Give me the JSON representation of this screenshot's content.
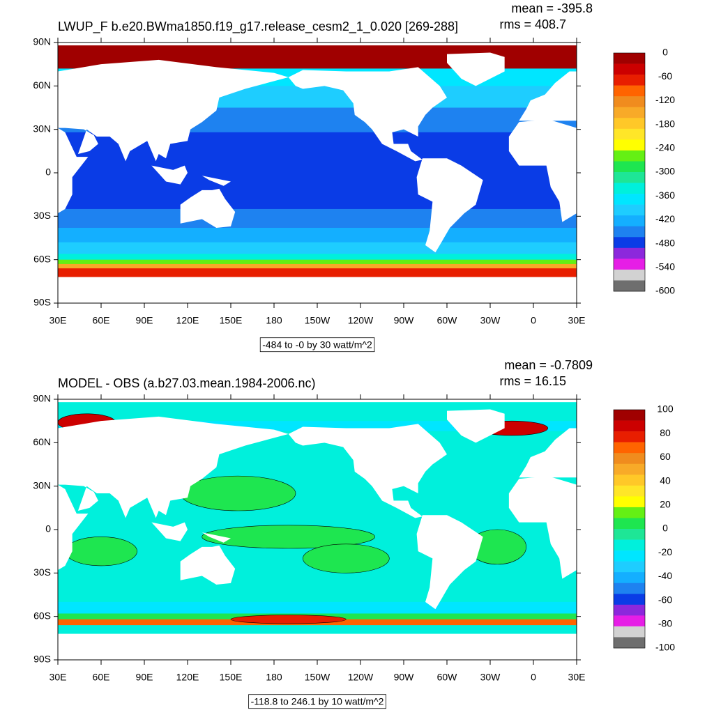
{
  "panels": [
    {
      "title": "LWUP_F b.e20.BWma1850.f19_g17.release_cesm2_1_0.020 [269-288]",
      "mean": "mean = -395.8",
      "rms": "rms = 408.7",
      "info": "-484 to -0 by 30 watt/m^2",
      "lat_ticks": [
        "90N",
        "60N",
        "30N",
        "0",
        "30S",
        "60S",
        "90S"
      ],
      "lon_ticks": [
        "30E",
        "60E",
        "90E",
        "120E",
        "150E",
        "180",
        "150W",
        "120W",
        "90W",
        "60W",
        "30W",
        "0",
        "30E"
      ],
      "colorbar_labels": [
        "0",
        "-60",
        "-120",
        "-180",
        "-240",
        "-300",
        "-360",
        "-420",
        "-480",
        "-540",
        "-600"
      ],
      "colors": [
        "#a00000",
        "#cc0000",
        "#e81e00",
        "#ff6400",
        "#f08c1e",
        "#f8aa28",
        "#ffc828",
        "#ffe628",
        "#ffff00",
        "#64f014",
        "#1ee650",
        "#1ee696",
        "#00f0dc",
        "#00e6ff",
        "#1ecdff",
        "#14afff",
        "#1e82f0",
        "#0a3ce6",
        "#8c28dc",
        "#e61ee6",
        "#d2d2d2",
        "#6e6e6e"
      ]
    },
    {
      "title": "MODEL - OBS (a.b27.03.mean.1984-2006.nc)",
      "mean": "mean = -0.7809",
      "rms": "rms = 16.15",
      "info": "-118.8 to 246.1 by 10 watt/m^2",
      "lat_ticks": [
        "90N",
        "60N",
        "30N",
        "0",
        "30S",
        "60S",
        "90S"
      ],
      "lon_ticks": [
        "30E",
        "60E",
        "90E",
        "120E",
        "150E",
        "180",
        "150W",
        "120W",
        "90W",
        "60W",
        "30W",
        "0",
        "30E"
      ],
      "colorbar_labels": [
        "100",
        "80",
        "60",
        "40",
        "20",
        "0",
        "-20",
        "-40",
        "-60",
        "-80",
        "-100"
      ],
      "colors": [
        "#a00000",
        "#cc0000",
        "#e81e00",
        "#ff6400",
        "#f08c1e",
        "#f8aa28",
        "#ffc828",
        "#ffe628",
        "#ffff00",
        "#64f014",
        "#1ee650",
        "#1ee696",
        "#00f0dc",
        "#00e6ff",
        "#1ecdff",
        "#14afff",
        "#1e82f0",
        "#0a3ce6",
        "#8c28dc",
        "#e61ee6",
        "#d2d2d2",
        "#6e6e6e"
      ]
    }
  ]
}
